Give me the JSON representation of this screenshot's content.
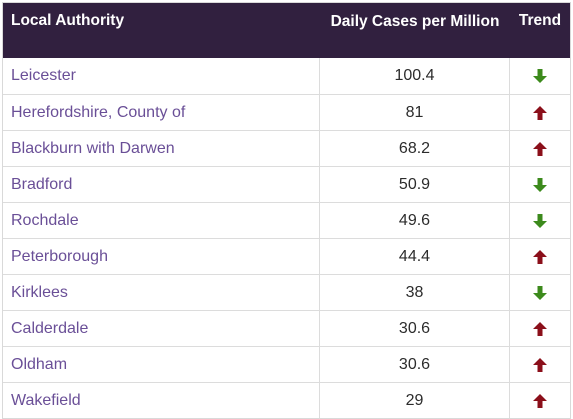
{
  "header": {
    "col_authority": "Local Authority",
    "col_cases": "Daily Cases per Million",
    "col_trend": "Trend"
  },
  "rows": [
    {
      "authority": "Leicester",
      "cases": "100.4",
      "trend": "down",
      "icon": "arrow-down-icon"
    },
    {
      "authority": "Herefordshire, County of",
      "cases": "81",
      "trend": "up",
      "icon": "arrow-up-icon"
    },
    {
      "authority": "Blackburn with Darwen",
      "cases": "68.2",
      "trend": "up",
      "icon": "arrow-up-icon"
    },
    {
      "authority": "Bradford",
      "cases": "50.9",
      "trend": "down",
      "icon": "arrow-down-icon"
    },
    {
      "authority": "Rochdale",
      "cases": "49.6",
      "trend": "down",
      "icon": "arrow-down-icon"
    },
    {
      "authority": "Peterborough",
      "cases": "44.4",
      "trend": "up",
      "icon": "arrow-up-icon"
    },
    {
      "authority": "Kirklees",
      "cases": "38",
      "trend": "down",
      "icon": "arrow-down-icon"
    },
    {
      "authority": "Calderdale",
      "cases": "30.6",
      "trend": "up",
      "icon": "arrow-up-icon"
    },
    {
      "authority": "Oldham",
      "cases": "30.6",
      "trend": "up",
      "icon": "arrow-up-icon"
    },
    {
      "authority": "Wakefield",
      "cases": "29",
      "trend": "up",
      "icon": "arrow-up-icon"
    }
  ],
  "colors": {
    "header_bg": "#31203f",
    "authority_text": "#6a4f97",
    "trend_down": "#3c8a1c",
    "trend_up": "#8b0f1a"
  }
}
